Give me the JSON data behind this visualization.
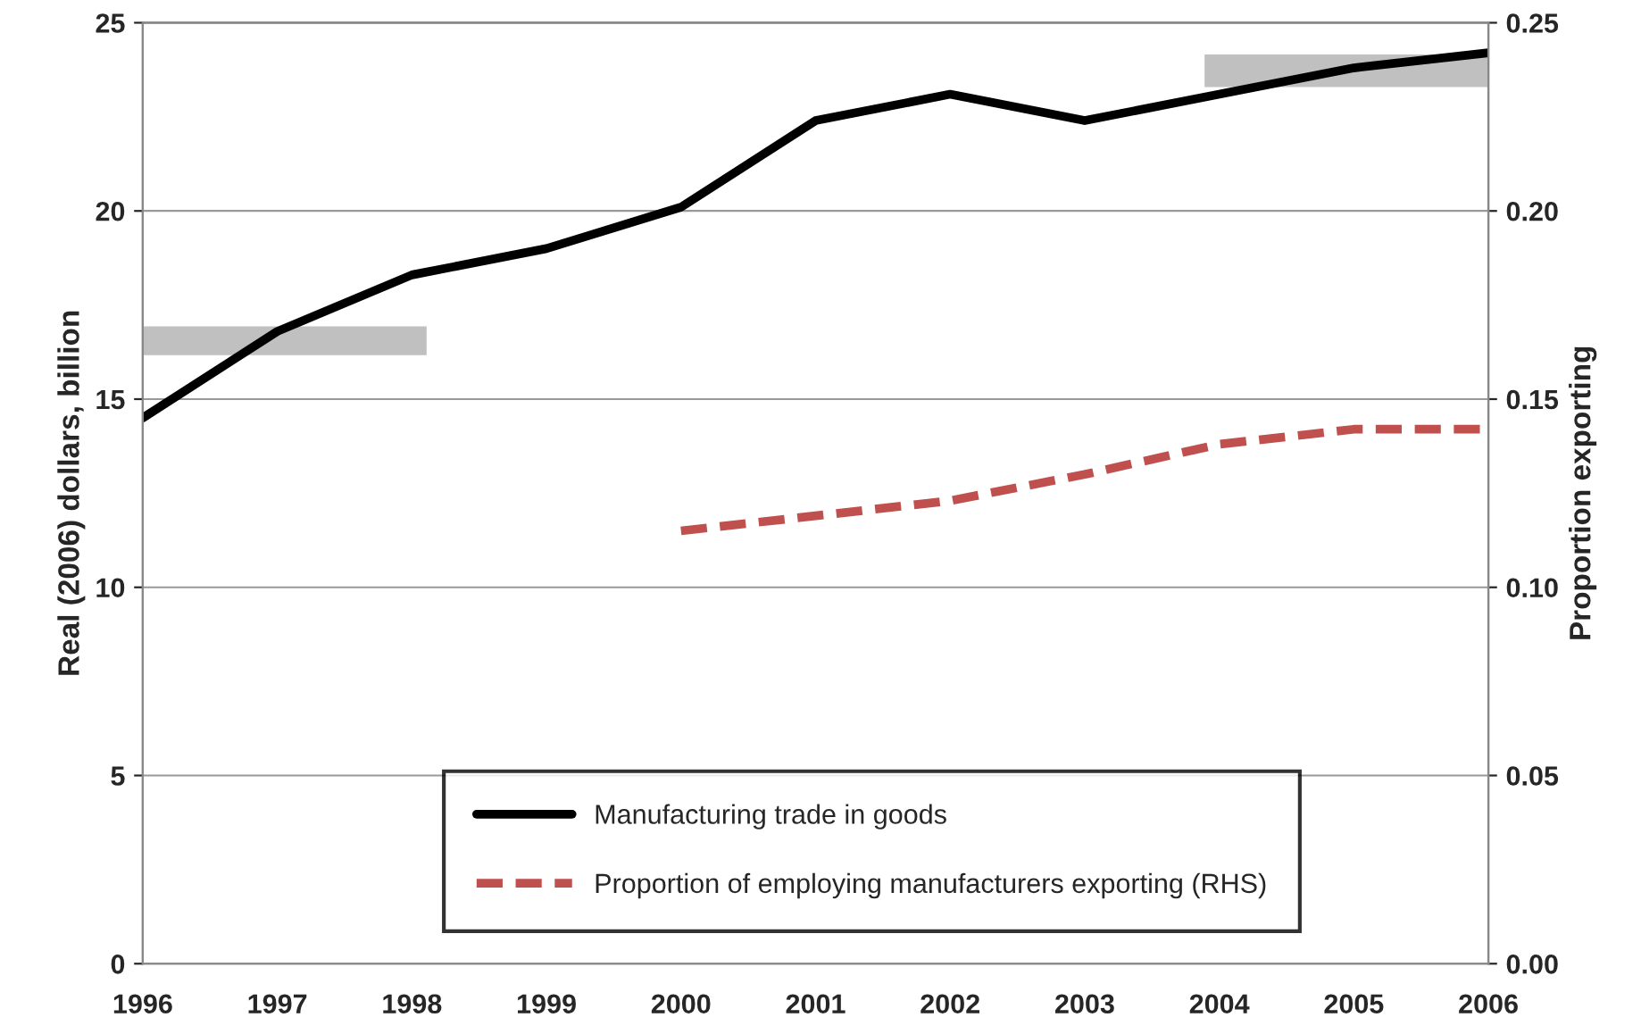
{
  "chart_data": {
    "type": "line",
    "ylabel": "Real (2006) dollars, billion",
    "y2label": "Proportion exporting",
    "x": [
      1996,
      1997,
      1998,
      1999,
      2000,
      2001,
      2002,
      2003,
      2004,
      2005,
      2006
    ],
    "series": [
      {
        "name": "Manufacturing trade in goods",
        "color": "#000000",
        "line_style": "solid",
        "values": [
          14.5,
          16.8,
          18.3,
          19.0,
          20.1,
          22.4,
          23.1,
          22.4,
          23.1,
          23.8,
          24.2
        ]
      },
      {
        "name": "Proportion of employing manufacturers exporting (RHS)",
        "color": "#c0504d",
        "line_style": "dashed",
        "axis": "y2",
        "values": [
          null,
          null,
          null,
          null,
          0.115,
          0.119,
          0.123,
          0.13,
          0.138,
          0.142,
          0.142
        ]
      }
    ],
    "xlim": [
      1996,
      2006
    ],
    "xticks": [
      1996,
      1997,
      1998,
      1999,
      2000,
      2001,
      2002,
      2003,
      2004,
      2005,
      2006
    ],
    "ylim": [
      0,
      25
    ],
    "yticks": [
      0,
      5,
      10,
      15,
      20,
      25
    ],
    "y2lim": [
      0,
      0.25
    ],
    "y2ticks": [
      {
        "value": 0,
        "label": "0.00"
      },
      {
        "value": 0.05,
        "label": "0.05"
      },
      {
        "value": 0.1,
        "label": "0.10"
      },
      {
        "value": 0.15,
        "label": "0.15"
      },
      {
        "value": 0.2,
        "label": "0.20"
      },
      {
        "value": 0.25,
        "label": "0.25"
      }
    ],
    "grid": "y",
    "legend": "bottom right",
    "marker": "none"
  }
}
